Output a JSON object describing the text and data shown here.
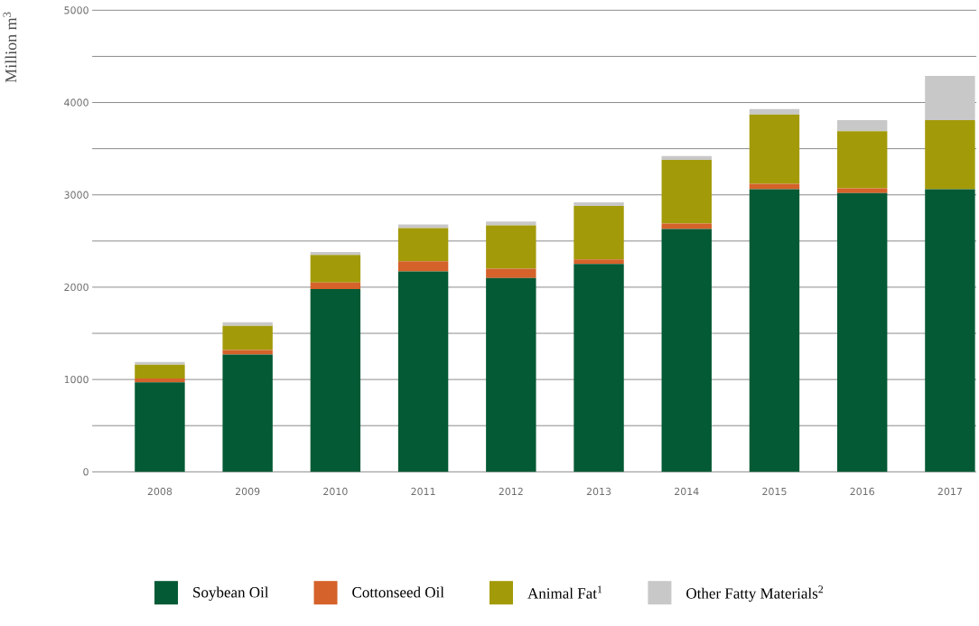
{
  "chart_data": {
    "type": "bar",
    "stacked": true,
    "ylabel": "Million m$^{3}$",
    "categories": [
      "2008",
      "2009",
      "2010",
      "2011",
      "2012",
      "2013",
      "2014",
      "2015",
      "2016",
      "2017"
    ],
    "series": [
      {
        "name": "Soybean Oil",
        "color": "#045a35",
        "values": [
          970,
          1270,
          1980,
          2170,
          2100,
          2250,
          2630,
          3060,
          3020,
          3060
        ]
      },
      {
        "name": "Cottonseed Oil",
        "color": "#d4622a",
        "values": [
          40,
          50,
          70,
          110,
          100,
          50,
          60,
          60,
          50,
          0
        ]
      },
      {
        "name": "Animal Fat$^{1}$",
        "color": "#a39a0a",
        "values": [
          150,
          260,
          300,
          360,
          470,
          580,
          690,
          750,
          620,
          750
        ]
      },
      {
        "name": "Other Fatty Materials$^{2}$",
        "color": "#c8c8c8",
        "values": [
          30,
          40,
          30,
          40,
          40,
          40,
          40,
          60,
          120,
          480
        ]
      }
    ],
    "ylim": [
      0,
      5000
    ],
    "yticks": [
      0,
      {
        "value": 500,
        "label": null
      },
      1000,
      {
        "value": 1500,
        "label": null
      },
      2000,
      {
        "value": 2500,
        "label": null
      },
      3000,
      {
        "value": 3500,
        "label": null
      },
      4000,
      {
        "value": 4500,
        "label": null
      },
      5000
    ],
    "grid": "y",
    "legend": "bottom"
  }
}
